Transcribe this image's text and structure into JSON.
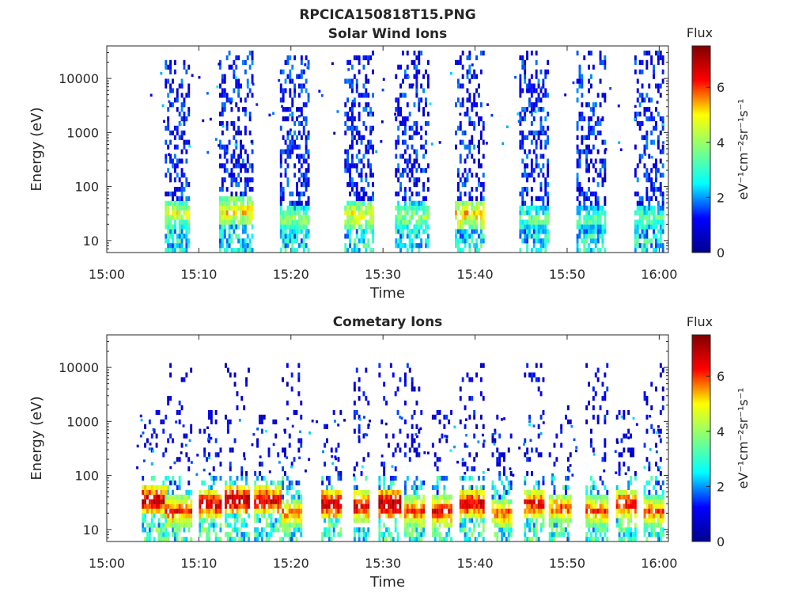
{
  "figure_title": "RPCICA150818T15.PNG",
  "colormap": "jet",
  "colormap_stops": [
    "#00008f",
    "#0000ff",
    "#00ffff",
    "#7fff7f",
    "#ffff00",
    "#ff0000",
    "#800000"
  ],
  "chart_data": [
    {
      "type": "heatmap",
      "title": "Solar Wind Ions",
      "xlabel": "Time",
      "ylabel": "Energy (eV)",
      "x_ticks": [
        "15:00",
        "15:10",
        "15:20",
        "15:30",
        "15:40",
        "15:50",
        "16:00"
      ],
      "x_range_minutes": [
        0,
        61
      ],
      "y_scale": "log",
      "y_ticks": [
        "10",
        "100",
        "1000",
        "10000"
      ],
      "y_range_eV": [
        6,
        40000
      ],
      "colorbar": {
        "label": "Flux",
        "unit": "eV⁻¹cm⁻²sr⁻¹s⁻¹",
        "range": [
          0,
          7.5
        ],
        "ticks": [
          "0",
          "2",
          "4",
          "6"
        ]
      },
      "bursts": [
        {
          "start_min": 6.3,
          "end_min": 9.0,
          "peak_eV": 32,
          "peak_flux": 4.6,
          "max_eV": 20000
        },
        {
          "start_min": 12.2,
          "end_min": 15.8,
          "peak_eV": 35,
          "peak_flux": 5.0,
          "max_eV": 35000
        },
        {
          "start_min": 18.8,
          "end_min": 22.0,
          "peak_eV": 25,
          "peak_flux": 4.0,
          "max_eV": 25000
        },
        {
          "start_min": 25.8,
          "end_min": 28.8,
          "peak_eV": 30,
          "peak_flux": 4.8,
          "max_eV": 30000
        },
        {
          "start_min": 31.3,
          "end_min": 34.8,
          "peak_eV": 28,
          "peak_flux": 4.0,
          "max_eV": 30000
        },
        {
          "start_min": 37.8,
          "end_min": 40.8,
          "peak_eV": 30,
          "peak_flux": 5.2,
          "max_eV": 30000
        },
        {
          "start_min": 44.8,
          "end_min": 47.8,
          "peak_eV": 25,
          "peak_flux": 3.5,
          "max_eV": 35000
        },
        {
          "start_min": 51.0,
          "end_min": 54.0,
          "peak_eV": 25,
          "peak_flux": 3.5,
          "max_eV": 30000
        },
        {
          "start_min": 57.3,
          "end_min": 60.3,
          "peak_eV": 25,
          "peak_flux": 3.5,
          "max_eV": 30000
        }
      ]
    },
    {
      "type": "heatmap",
      "title": "Cometary Ions",
      "xlabel": "Time",
      "ylabel": "Energy (eV)",
      "x_ticks": [
        "15:00",
        "15:10",
        "15:20",
        "15:30",
        "15:40",
        "15:50",
        "16:00"
      ],
      "x_range_minutes": [
        0,
        61
      ],
      "y_scale": "log",
      "y_ticks": [
        "10",
        "100",
        "1000",
        "10000"
      ],
      "y_range_eV": [
        6,
        40000
      ],
      "colorbar": {
        "label": "Flux",
        "unit": "eV⁻¹cm⁻²sr⁻¹s⁻¹",
        "range": [
          0,
          7.5
        ],
        "ticks": [
          "0",
          "2",
          "4",
          "6"
        ]
      },
      "bursts": [
        {
          "start_min": 3.8,
          "end_min": 6.3,
          "peak_eV": 35,
          "peak_flux": 7.0,
          "max_eV": 1500
        },
        {
          "start_min": 6.3,
          "end_min": 9.2,
          "peak_eV": 22,
          "peak_flux": 6.3,
          "max_eV": 11000
        },
        {
          "start_min": 10.0,
          "end_min": 12.3,
          "peak_eV": 30,
          "peak_flux": 6.8,
          "max_eV": 1500
        },
        {
          "start_min": 12.8,
          "end_min": 15.3,
          "peak_eV": 35,
          "peak_flux": 7.2,
          "max_eV": 11000
        },
        {
          "start_min": 16.0,
          "end_min": 18.8,
          "peak_eV": 35,
          "peak_flux": 6.8,
          "max_eV": 2000
        },
        {
          "start_min": 19.0,
          "end_min": 21.0,
          "peak_eV": 20,
          "peak_flux": 5.8,
          "max_eV": 11000
        },
        {
          "start_min": 23.3,
          "end_min": 25.3,
          "peak_eV": 30,
          "peak_flux": 7.0,
          "max_eV": 1500
        },
        {
          "start_min": 26.8,
          "end_min": 28.3,
          "peak_eV": 28,
          "peak_flux": 6.8,
          "max_eV": 11000
        },
        {
          "start_min": 29.5,
          "end_min": 31.8,
          "peak_eV": 30,
          "peak_flux": 7.2,
          "max_eV": 11000
        },
        {
          "start_min": 32.3,
          "end_min": 34.3,
          "peak_eV": 22,
          "peak_flux": 6.2,
          "max_eV": 11000
        },
        {
          "start_min": 35.3,
          "end_min": 37.3,
          "peak_eV": 22,
          "peak_flux": 6.5,
          "max_eV": 1500
        },
        {
          "start_min": 38.3,
          "end_min": 40.8,
          "peak_eV": 30,
          "peak_flux": 6.8,
          "max_eV": 11000
        },
        {
          "start_min": 41.8,
          "end_min": 43.8,
          "peak_eV": 20,
          "peak_flux": 6.0,
          "max_eV": 1500
        },
        {
          "start_min": 45.3,
          "end_min": 47.3,
          "peak_eV": 30,
          "peak_flux": 6.5,
          "max_eV": 11000
        },
        {
          "start_min": 48.0,
          "end_min": 50.3,
          "peak_eV": 25,
          "peak_flux": 6.0,
          "max_eV": 2000
        },
        {
          "start_min": 52.0,
          "end_min": 54.3,
          "peak_eV": 22,
          "peak_flux": 6.0,
          "max_eV": 11000
        },
        {
          "start_min": 55.3,
          "end_min": 57.3,
          "peak_eV": 30,
          "peak_flux": 6.5,
          "max_eV": 1500
        },
        {
          "start_min": 58.3,
          "end_min": 60.5,
          "peak_eV": 22,
          "peak_flux": 6.0,
          "max_eV": 11000
        }
      ]
    }
  ]
}
